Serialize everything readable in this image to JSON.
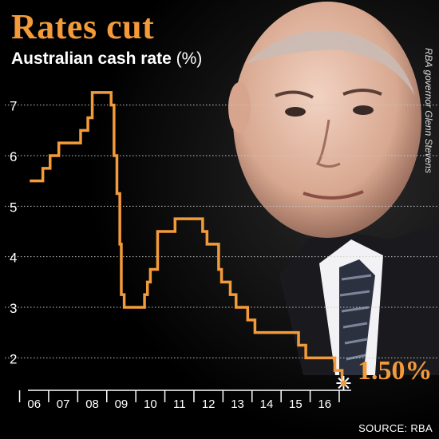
{
  "title": "Rates cut",
  "subtitle": "Australian cash rate",
  "unit": "(%)",
  "source": "SOURCE: RBA",
  "photo_credit": "RBA governor Glenn Stevens",
  "final_value_label": "1.50%",
  "colors": {
    "accent": "#f39a3a",
    "background": "#000000",
    "grid": "#c8c8c8"
  },
  "chart_data": {
    "type": "line",
    "title": "Rates cut",
    "ylabel": "Australian cash rate (%)",
    "xlabel": "",
    "y_ticks": [
      2,
      3,
      4,
      5,
      6,
      7
    ],
    "x_tick_labels": [
      "06",
      "07",
      "08",
      "09",
      "10",
      "11",
      "12",
      "13",
      "14",
      "15",
      "16"
    ],
    "ylim": [
      1.5,
      7.5
    ],
    "xlim": [
      2005.65,
      2017.05
    ],
    "grid": true,
    "step": true,
    "series": [
      {
        "x": [
          2005.85,
          2006.3,
          2006.55,
          2006.85,
          2007.6,
          2007.85,
          2008.0,
          2008.65,
          2008.75,
          2008.85,
          2008.95,
          2009.0,
          2009.1,
          2009.8,
          2009.9,
          2010.0,
          2010.25,
          2010.85,
          2011.8,
          2011.95,
          2012.35,
          2012.45,
          2012.75,
          2012.95,
          2013.35,
          2013.6,
          2015.1,
          2015.35,
          2016.35,
          2016.6
        ],
        "values": [
          5.5,
          5.75,
          6.0,
          6.25,
          6.5,
          6.75,
          7.25,
          7.0,
          6.0,
          5.25,
          4.25,
          3.25,
          3.0,
          3.25,
          3.5,
          3.75,
          4.5,
          4.75,
          4.5,
          4.25,
          3.75,
          3.5,
          3.25,
          3.0,
          2.75,
          2.5,
          2.25,
          2.0,
          1.75,
          1.5
        ]
      }
    ]
  }
}
